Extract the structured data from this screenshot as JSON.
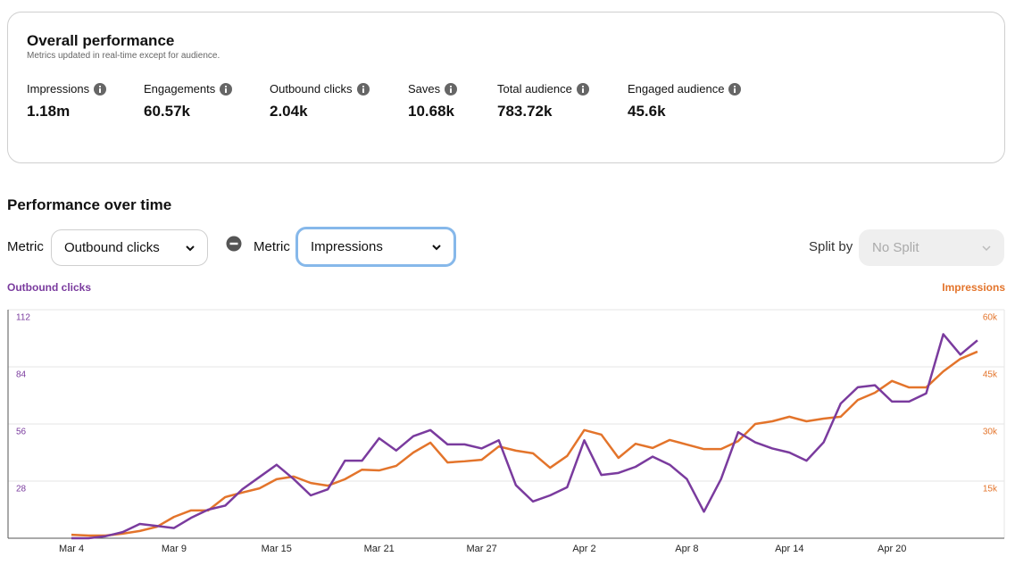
{
  "header": {
    "title": "Overall performance",
    "subtitle": "Metrics updated in real-time except for audience."
  },
  "metrics": [
    {
      "label": "Impressions",
      "value": "1.18m"
    },
    {
      "label": "Engagements",
      "value": "60.57k"
    },
    {
      "label": "Outbound clicks",
      "value": "2.04k"
    },
    {
      "label": "Saves",
      "value": "10.68k"
    },
    {
      "label": "Total audience",
      "value": "783.72k"
    },
    {
      "label": "Engaged audience",
      "value": "45.6k"
    }
  ],
  "section_title": "Performance over time",
  "controls": {
    "metric_label": "Metric",
    "metric_1": "Outbound clicks",
    "metric_2": "Impressions",
    "split_label": "Split by",
    "split": "No Split"
  },
  "chart_data": {
    "type": "line",
    "categories": [
      "Mar 4",
      null,
      null,
      null,
      null,
      null,
      "Mar 9",
      null,
      null,
      null,
      null,
      null,
      "Mar 15",
      null,
      null,
      null,
      null,
      null,
      "Mar 21",
      null,
      null,
      null,
      null,
      null,
      "Mar 27",
      null,
      null,
      null,
      null,
      null,
      "Apr 2",
      null,
      null,
      null,
      null,
      null,
      "Apr 8",
      null,
      null,
      null,
      null,
      null,
      "Apr 14",
      null,
      null,
      null,
      null,
      null,
      "Apr 20",
      null,
      null,
      null,
      null,
      null
    ],
    "series": [
      {
        "name": "Outbound clicks",
        "color": "#7a3b9e",
        "axis": "y",
        "values": [
          0,
          0,
          1,
          3,
          7,
          6,
          5,
          10,
          14,
          16,
          24,
          30,
          36,
          29,
          21,
          24,
          38,
          38,
          49,
          43,
          50,
          53,
          46,
          46,
          44,
          48,
          26,
          18,
          21,
          25,
          48,
          31,
          32,
          35,
          40,
          36,
          29,
          13,
          29,
          52,
          47,
          44,
          42,
          38,
          47,
          66,
          74,
          75,
          67,
          67,
          71,
          100,
          90,
          97
        ]
      },
      {
        "name": "Impressions",
        "color": "#e3742b",
        "axis": "y2",
        "values": [
          900,
          700,
          700,
          1200,
          1900,
          3000,
          5600,
          7300,
          7300,
          10800,
          12000,
          13100,
          15500,
          16200,
          14500,
          13800,
          15500,
          18000,
          17800,
          19000,
          22500,
          25100,
          19900,
          20200,
          20600,
          24100,
          23000,
          22300,
          18500,
          21600,
          28400,
          27200,
          21100,
          24800,
          23700,
          25800,
          24600,
          23400,
          23400,
          25500,
          30000,
          30700,
          31900,
          30700,
          31400,
          31900,
          36300,
          38200,
          41300,
          39600,
          39600,
          43800,
          47100,
          49000
        ]
      }
    ],
    "ylim": [
      0,
      112
    ],
    "yticks": [
      28,
      56,
      84,
      112
    ],
    "y2lim": [
      0,
      60000
    ],
    "y2ticks": [
      {
        "value": 15000,
        "label": "15k"
      },
      {
        "value": 30000,
        "label": "30k"
      },
      {
        "value": 45000,
        "label": "45k"
      },
      {
        "value": 60000,
        "label": "60k"
      }
    ],
    "grid": true
  }
}
